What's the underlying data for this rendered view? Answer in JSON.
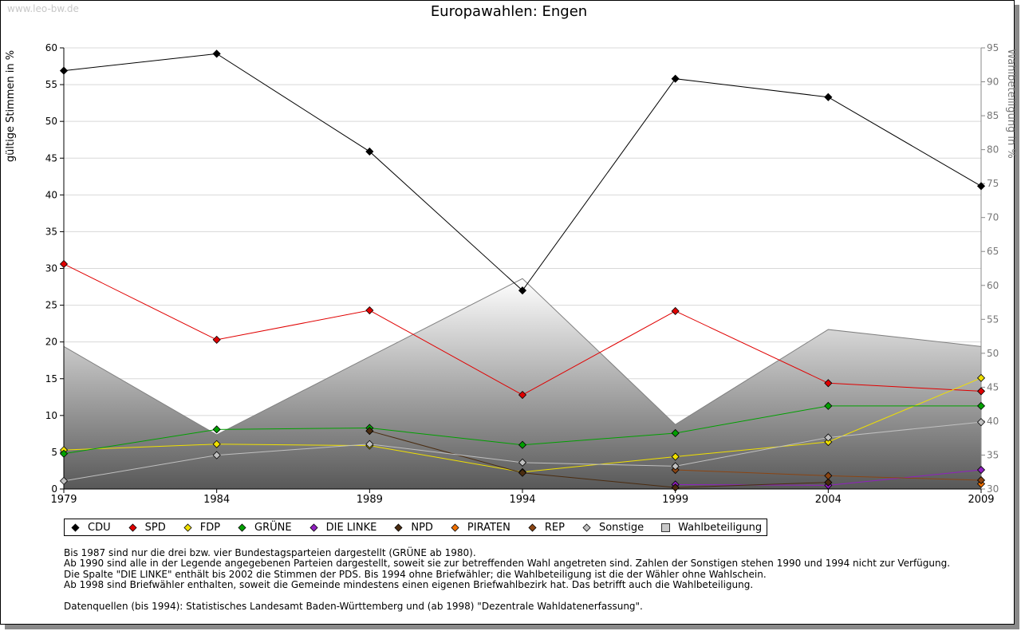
{
  "watermark": "www.leo-bw.de",
  "chart_data": {
    "type": "line",
    "title": "Europawahlen: Engen",
    "ylabel": "gültige Stimmen in %",
    "y2label": "Wahlbeteiligung in %",
    "x": [
      "1979",
      "1984",
      "1989",
      "1994",
      "1999",
      "2004",
      "2009"
    ],
    "ylim": [
      0,
      60
    ],
    "yticks": [
      0,
      5,
      10,
      15,
      20,
      25,
      30,
      35,
      40,
      45,
      50,
      55,
      60
    ],
    "y2lim": [
      30,
      95
    ],
    "y2ticks": [
      30,
      35,
      40,
      45,
      50,
      55,
      60,
      65,
      70,
      75,
      80,
      85,
      90,
      95
    ],
    "grid": true,
    "legend_position": "bottom",
    "turnout": {
      "name": "Wahlbeteiligung",
      "type": "area",
      "axis": "right",
      "values": [
        51.0,
        38.0,
        49.5,
        61.0,
        39.5,
        53.5,
        51.0
      ]
    },
    "series": [
      {
        "name": "CDU",
        "color": "#000000",
        "values": [
          56.9,
          59.2,
          45.9,
          27.0,
          55.8,
          53.3,
          41.2
        ]
      },
      {
        "name": "SPD",
        "color": "#e00000",
        "values": [
          30.6,
          20.3,
          24.3,
          12.8,
          24.2,
          14.4,
          13.3
        ]
      },
      {
        "name": "FDP",
        "color": "#f0e000",
        "values": [
          5.3,
          6.1,
          5.9,
          2.3,
          4.4,
          6.4,
          15.1
        ]
      },
      {
        "name": "GRÜNE",
        "color": "#00a000",
        "values": [
          4.8,
          8.1,
          8.3,
          6.0,
          7.6,
          11.3,
          11.3
        ]
      },
      {
        "name": "DIE LINKE",
        "color": "#9020c0",
        "values": [
          null,
          null,
          null,
          null,
          0.6,
          0.5,
          2.6
        ]
      },
      {
        "name": "NPD",
        "color": "#4a2c10",
        "values": [
          null,
          null,
          7.9,
          2.2,
          0.2,
          0.9,
          null
        ]
      },
      {
        "name": "PIRATEN",
        "color": "#f07000",
        "values": [
          null,
          null,
          null,
          null,
          null,
          null,
          0.7
        ]
      },
      {
        "name": "REP",
        "color": "#8b4513",
        "values": [
          null,
          null,
          null,
          null,
          2.6,
          1.8,
          1.2
        ]
      },
      {
        "name": "Sonstige",
        "color": "#c0c0c0",
        "values": [
          1.1,
          4.6,
          6.1,
          3.6,
          3.1,
          7.0,
          9.1
        ]
      }
    ],
    "legend": [
      {
        "label": "CDU",
        "color": "#000000",
        "shape": "diamond"
      },
      {
        "label": "SPD",
        "color": "#e00000",
        "shape": "diamond"
      },
      {
        "label": "FDP",
        "color": "#f0e000",
        "shape": "diamond"
      },
      {
        "label": "GRÜNE",
        "color": "#00a000",
        "shape": "diamond"
      },
      {
        "label": "DIE LINKE",
        "color": "#9020c0",
        "shape": "diamond"
      },
      {
        "label": "NPD",
        "color": "#4a2c10",
        "shape": "diamond"
      },
      {
        "label": "PIRATEN",
        "color": "#f07000",
        "shape": "diamond"
      },
      {
        "label": "REP",
        "color": "#8b4513",
        "shape": "diamond"
      },
      {
        "label": "Sonstige",
        "color": "#c0c0c0",
        "shape": "diamond"
      },
      {
        "label": "Wahlbeteiligung",
        "color": "#c8c8c8",
        "shape": "square"
      }
    ]
  },
  "notes": [
    "Bis 1987 sind nur die drei bzw. vier Bundestagsparteien dargestellt (GRÜNE ab 1980).",
    "Ab 1990 sind alle in der Legende angegebenen Parteien dargestellt, soweit sie zur betreffenden Wahl angetreten sind. Zahlen der Sonstigen stehen 1990 und 1994 nicht zur Verfügung.",
    "Die Spalte \"DIE LINKE\" enthält bis 2002 die Stimmen der PDS. Bis 1994 ohne Briefwähler; die Wahlbeteiligung ist die der Wähler ohne Wahlschein.",
    "Ab 1998 sind Briefwähler enthalten, soweit die Gemeinde mindestens einen eigenen Briefwahlbezirk hat. Das betrifft auch die Wahlbeteiligung."
  ],
  "source": "Datenquellen (bis 1994): Statistisches Landesamt Baden-Württemberg und (ab 1998) \"Dezentrale Wahldatenerfassung\"."
}
